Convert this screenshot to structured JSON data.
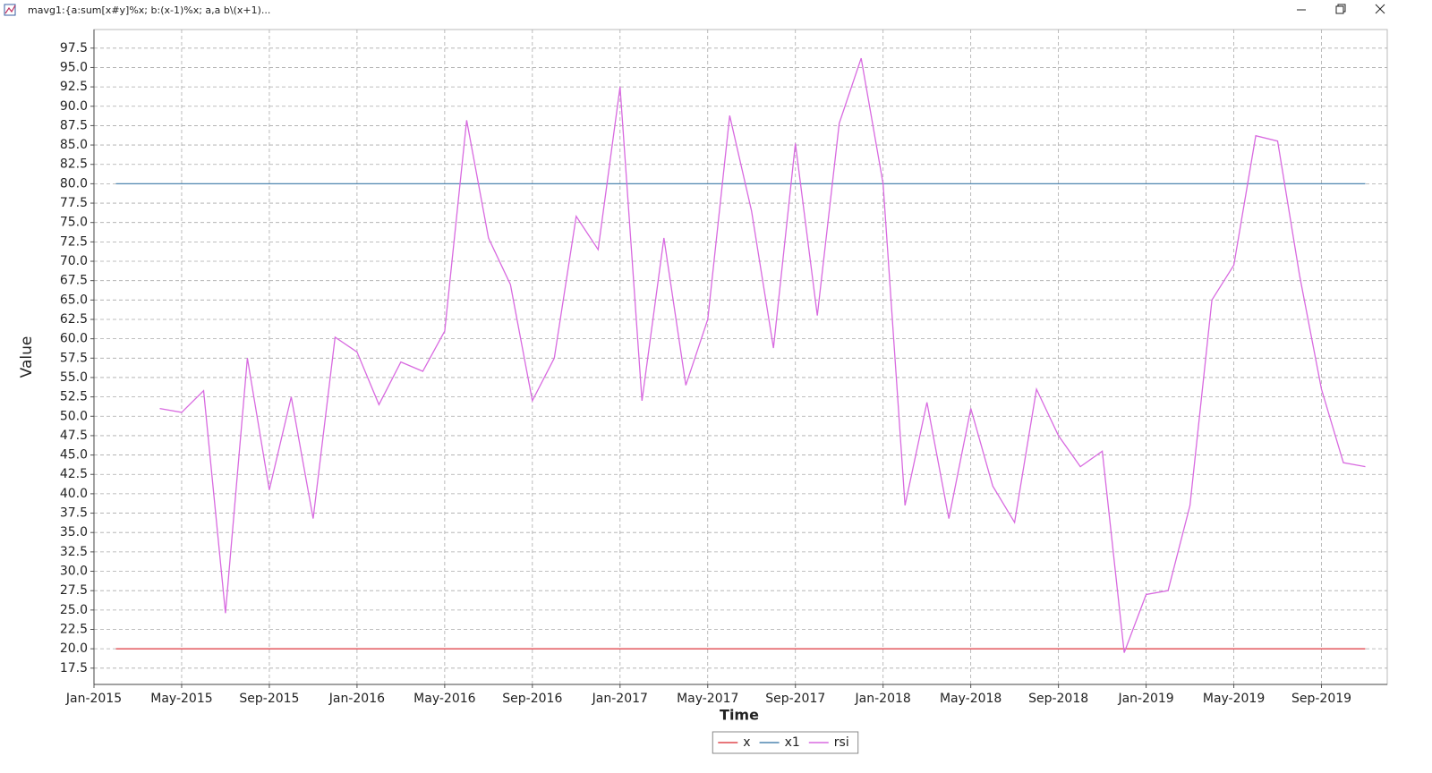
{
  "window_title": "mavg1:{a:sum[x#y]%x; b:(x-1)%x; a,a b\\(x+1)...",
  "chart_data": {
    "type": "line",
    "x_label": "Time",
    "y_label": "Value",
    "x": [
      "2015-02",
      "2015-03",
      "2015-04",
      "2015-05",
      "2015-06",
      "2015-07",
      "2015-08",
      "2015-09",
      "2015-10",
      "2015-11",
      "2015-12",
      "2016-01",
      "2016-02",
      "2016-03",
      "2016-04",
      "2016-05",
      "2016-06",
      "2016-07",
      "2016-08",
      "2016-09",
      "2016-10",
      "2016-11",
      "2016-12",
      "2017-01",
      "2017-02",
      "2017-03",
      "2017-04",
      "2017-05",
      "2017-06",
      "2017-07",
      "2017-08",
      "2017-09",
      "2017-10",
      "2017-11",
      "2017-12",
      "2018-01",
      "2018-02",
      "2018-03",
      "2018-04",
      "2018-05",
      "2018-06",
      "2018-07",
      "2018-08",
      "2018-09",
      "2018-10",
      "2018-11",
      "2018-12",
      "2019-01",
      "2019-02",
      "2019-03",
      "2019-04",
      "2019-05",
      "2019-06",
      "2019-07",
      "2019-08",
      "2019-09",
      "2019-10",
      "2019-11"
    ],
    "series": [
      {
        "name": "x",
        "color": "#e0484f",
        "values": [
          20,
          20,
          20,
          20,
          20,
          20,
          20,
          20,
          20,
          20,
          20,
          20,
          20,
          20,
          20,
          20,
          20,
          20,
          20,
          20,
          20,
          20,
          20,
          20,
          20,
          20,
          20,
          20,
          20,
          20,
          20,
          20,
          20,
          20,
          20,
          20,
          20,
          20,
          20,
          20,
          20,
          20,
          20,
          20,
          20,
          20,
          20,
          20,
          20,
          20,
          20,
          20,
          20,
          20,
          20,
          20,
          20,
          20
        ]
      },
      {
        "name": "x1",
        "color": "#4f86b0",
        "values": [
          80,
          80,
          80,
          80,
          80,
          80,
          80,
          80,
          80,
          80,
          80,
          80,
          80,
          80,
          80,
          80,
          80,
          80,
          80,
          80,
          80,
          80,
          80,
          80,
          80,
          80,
          80,
          80,
          80,
          80,
          80,
          80,
          80,
          80,
          80,
          80,
          80,
          80,
          80,
          80,
          80,
          80,
          80,
          80,
          80,
          80,
          80,
          80,
          80,
          80,
          80,
          80,
          80,
          80,
          80,
          80,
          80,
          80
        ]
      },
      {
        "name": "rsi",
        "color": "#d86ae0",
        "values": [
          null,
          null,
          51.0,
          50.5,
          53.3,
          24.6,
          57.5,
          40.5,
          52.5,
          36.8,
          60.2,
          58.3,
          51.5,
          57.0,
          55.8,
          61.0,
          88.2,
          73.0,
          67.0,
          52.0,
          57.5,
          75.8,
          71.5,
          92.5,
          52.0,
          73.0,
          54.0,
          62.5,
          88.8,
          76.5,
          58.8,
          85.2,
          63.0,
          87.8,
          96.2,
          80.0,
          38.5,
          51.8,
          36.8,
          51.0,
          41.0,
          36.3,
          53.5,
          47.5,
          43.5,
          45.5,
          19.5,
          27.0,
          27.5,
          38.5,
          65.0,
          69.5,
          86.2,
          85.5,
          68.2,
          53.5,
          44.0,
          43.5
        ]
      }
    ],
    "xlim": [
      "2015-01",
      "2019-12"
    ],
    "xticks": [
      {
        "value": "2015-01",
        "label": "Jan-2015"
      },
      {
        "value": "2015-05",
        "label": "May-2015"
      },
      {
        "value": "2015-09",
        "label": "Sep-2015"
      },
      {
        "value": "2016-01",
        "label": "Jan-2016"
      },
      {
        "value": "2016-05",
        "label": "May-2016"
      },
      {
        "value": "2016-09",
        "label": "Sep-2016"
      },
      {
        "value": "2017-01",
        "label": "Jan-2017"
      },
      {
        "value": "2017-05",
        "label": "May-2017"
      },
      {
        "value": "2017-09",
        "label": "Sep-2017"
      },
      {
        "value": "2018-01",
        "label": "Jan-2018"
      },
      {
        "value": "2018-05",
        "label": "May-2018"
      },
      {
        "value": "2018-09",
        "label": "Sep-2018"
      },
      {
        "value": "2019-01",
        "label": "Jan-2019"
      },
      {
        "value": "2019-05",
        "label": "May-2019"
      },
      {
        "value": "2019-09",
        "label": "Sep-2019"
      }
    ],
    "ylim": [
      15.4,
      99.9
    ],
    "yticks": [
      17.5,
      {
        "value": 20,
        "label": "20.0"
      },
      22.5,
      {
        "value": 25,
        "label": "25.0"
      },
      27.5,
      {
        "value": 30,
        "label": "30.0"
      },
      32.5,
      {
        "value": 35,
        "label": "35.0"
      },
      37.5,
      {
        "value": 40,
        "label": "40.0"
      },
      42.5,
      {
        "value": 45,
        "label": "45.0"
      },
      47.5,
      {
        "value": 50,
        "label": "50.0"
      },
      52.5,
      {
        "value": 55,
        "label": "55.0"
      },
      57.5,
      {
        "value": 60,
        "label": "60.0"
      },
      62.5,
      {
        "value": 65,
        "label": "65.0"
      },
      67.5,
      {
        "value": 70,
        "label": "70.0"
      },
      72.5,
      {
        "value": 75,
        "label": "75.0"
      },
      77.5,
      {
        "value": 80,
        "label": "80.0"
      },
      82.5,
      {
        "value": 85,
        "label": "85.0"
      },
      87.5,
      {
        "value": 90,
        "label": "90.0"
      },
      92.5,
      {
        "value": 95,
        "label": "95.0"
      },
      97.5
    ],
    "grid": true,
    "legend": "bottom"
  }
}
